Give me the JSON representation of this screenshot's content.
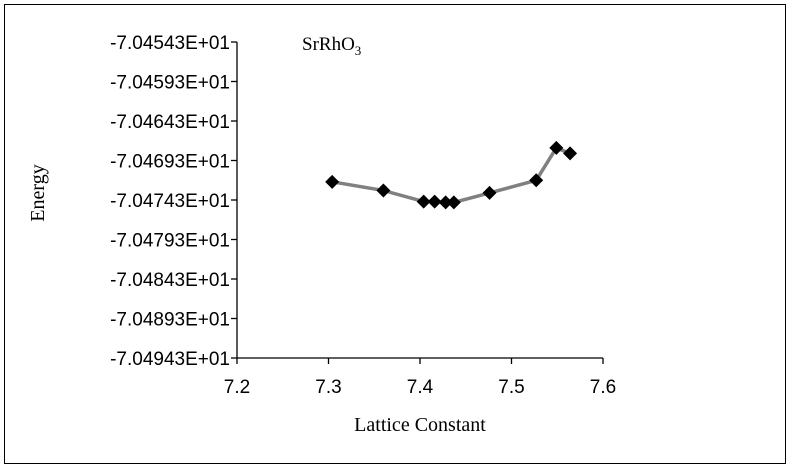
{
  "chart_data": {
    "type": "line",
    "title": "SrRhO",
    "title_subscript": "3",
    "xlabel": "Lattice Constant",
    "ylabel": "Energy",
    "xlim": [
      7.2,
      7.6
    ],
    "ylim": [
      -70.4943,
      -70.4543
    ],
    "x_ticks": [
      "7.2",
      "7.3",
      "7.4",
      "7.5",
      "7.6"
    ],
    "y_ticks": [
      "-7.04543E+01",
      "-7.04593E+01",
      "-7.04643E+01",
      "-7.04693E+01",
      "-7.04743E+01",
      "-7.04793E+01",
      "-7.04843E+01",
      "-7.04893E+01",
      "-7.04943E+01"
    ],
    "grid": false,
    "legend": "none",
    "line_color": "#808080",
    "marker_color": "#000000",
    "series": [
      {
        "x": [
          7.304,
          7.36,
          7.404,
          7.416,
          7.428,
          7.437,
          7.476,
          7.527,
          7.549,
          7.564
        ],
        "y": [
          -70.472,
          -70.4731,
          -70.4745,
          -70.4745,
          -70.4746,
          -70.4746,
          -70.4734,
          -70.4718,
          -70.4677,
          -70.4684
        ]
      }
    ]
  }
}
